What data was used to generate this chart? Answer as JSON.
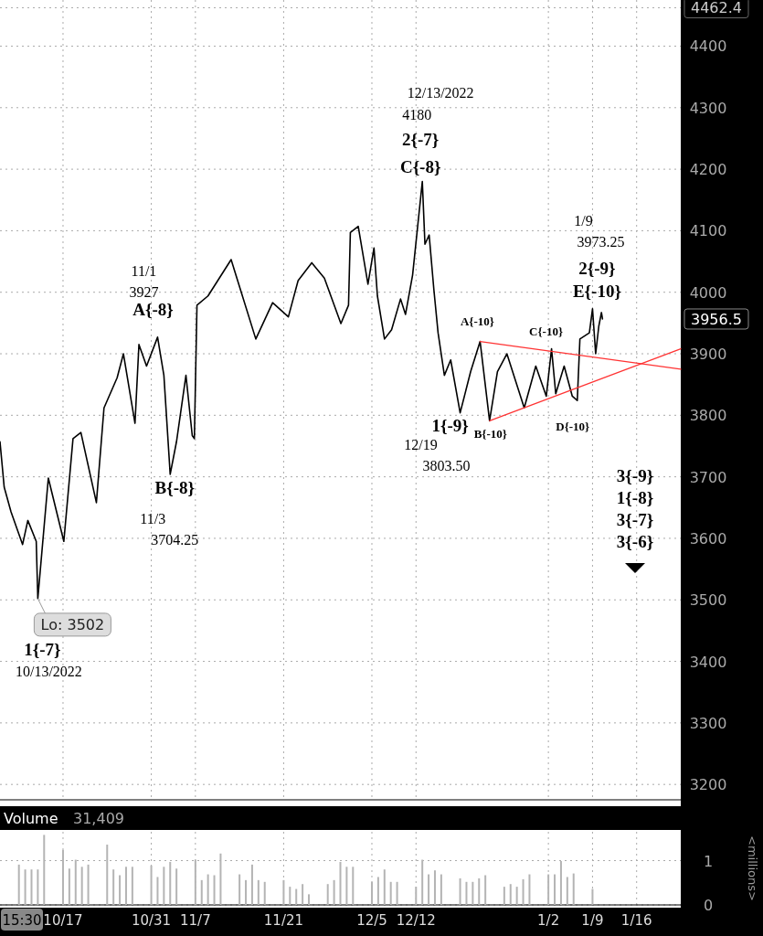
{
  "chart_data": [
    {
      "type": "line",
      "ylim": [
        3175,
        4475
      ],
      "yticks": [
        3200,
        3300,
        3400,
        3500,
        3600,
        3700,
        3800,
        3900,
        4000,
        4100,
        4200,
        4300,
        4400,
        4462.4
      ],
      "xlim": [
        "2022-10-07",
        "2023-01-23"
      ],
      "xticks": [
        {
          "value": "2022-10-17",
          "label": null
        },
        {
          "value": "2022-10-31",
          "label": null
        },
        {
          "value": "2022-11-07",
          "label": null
        },
        {
          "value": "2022-11-21",
          "label": null
        },
        {
          "value": "2022-12-05",
          "label": null
        },
        {
          "value": "2022-12-12",
          "label": null
        },
        {
          "value": "2023-01-02",
          "label": null
        },
        {
          "value": "2023-01-09",
          "label": null
        },
        {
          "value": "2023-01-16",
          "label": null
        }
      ],
      "tick_labels": "y",
      "grid": true,
      "series": [
        {
          "color": "#000000",
          "x": [
            "2022-10-07T00:00",
            "2022-10-07T16:00",
            "2022-10-08T18:00",
            "2022-10-10T14:00",
            "2022-10-11T10:00",
            "2022-10-12T18:00",
            "2022-10-13T00:00",
            "2022-10-14T16:00",
            "2022-10-17T03:00",
            "2022-10-18T14:00",
            "2022-10-19T20:00",
            "2022-10-22T07:00",
            "2022-10-23T12:00",
            "2022-10-25T14:00",
            "2022-10-26T14:00",
            "2022-10-28T10:00",
            "2022-10-29T01:00",
            "2022-10-30T06:00",
            "2022-11-01T00:00",
            "2022-11-02T00:00",
            "2022-11-03T00:00",
            "2022-11-04T00:00",
            "2022-11-05T12:00",
            "2022-11-06T12:00",
            "2022-11-06T20:00",
            "2022-11-07T06:00",
            "2022-11-09T00:00",
            "2022-11-12T16:00",
            "2022-11-16T14:00",
            "2022-11-19T06:00",
            "2022-11-21T18:00",
            "2022-11-23T07:00",
            "2022-11-25T11:00",
            "2022-11-27T11:00",
            "2022-11-30T02:00",
            "2022-12-01T07:00",
            "2022-12-01T14:00",
            "2022-12-02T20:00",
            "2022-12-04T09:00",
            "2022-12-05T08:00",
            "2022-12-05T21:00",
            "2022-12-07T00:00",
            "2022-12-08T03:00",
            "2022-12-09T13:00",
            "2022-12-10T08:00",
            "2022-12-11T11:00",
            "2022-12-13T00:00",
            "2022-12-13T10:00",
            "2022-12-14T02:00",
            "2022-12-14T20:00",
            "2022-12-15T12:00",
            "2022-12-16T12:00",
            "2022-12-17T12:00",
            "2022-12-19T00:00",
            "2022-12-20T16:00",
            "2022-12-22T04:00",
            "2022-12-23T16:00",
            "2022-12-24T22:00",
            "2022-12-26T10:00",
            "2022-12-29T04:00",
            "2022-12-31T00:00",
            "2023-01-01T16:00",
            "2023-01-02T12:00",
            "2023-01-03T04:00",
            "2023-01-04T12:00",
            "2023-01-05T19:00",
            "2023-01-06T14:00",
            "2023-01-07T00:00",
            "2023-01-08T12:00",
            "2023-01-09T00:00",
            "2023-01-09T12:00",
            "2023-01-10T00:00",
            "2023-01-10T10:00",
            "2023-01-10T14:00"
          ],
          "values": [
            3757,
            3683,
            3643,
            3590,
            3629,
            3595,
            3502,
            3698,
            3595,
            3762,
            3772,
            3658,
            3812,
            3861,
            3900,
            3787,
            3915,
            3880,
            3927,
            3865,
            3704,
            3757,
            3865,
            3767,
            3762,
            3979,
            3994,
            4053,
            3924,
            3983,
            3960,
            4019,
            4048,
            4023,
            3949,
            3979,
            4097,
            4107,
            4013,
            4072,
            3994,
            3924,
            3939,
            3989,
            3964,
            4028,
            4180,
            4078,
            4093,
            4004,
            3934,
            3865,
            3890,
            3804,
            3871,
            3920,
            3791,
            3871,
            3900,
            3812,
            3880,
            3831,
            3908,
            3835,
            3880,
            3831,
            3824,
            3924,
            3934,
            3973,
            3900,
            3945,
            3967,
            3956.5
          ]
        },
        {
          "color": "#ff3333",
          "x": [
            "2022-12-22T04:00",
            "2023-01-23T00:00"
          ],
          "values": [
            3920,
            3875
          ]
        },
        {
          "color": "#ff3333",
          "x": [
            "2022-12-23T16:00",
            "2023-01-23T00:00"
          ],
          "values": [
            3791,
            3908
          ]
        }
      ],
      "annotations": [
        {
          "text": "Lo: 3502",
          "x": "2022-10-13T00:00",
          "y": 3502
        },
        {
          "text": "1{-7}",
          "x": "2022-10-13T00:00",
          "y": 3502
        },
        "10/13/2022",
        "11/1",
        "3927",
        {
          "text": "A{-8}",
          "x": "2022-11-01T00:00",
          "y": 3927
        },
        {
          "text": "B{-8}",
          "x": "2022-11-03T00:00",
          "y": 3704.25
        },
        "11/3",
        "3704.25",
        "12/13/2022",
        "4180",
        {
          "text": "2{-7}",
          "x": "2022-12-13T00:00",
          "y": 4180
        },
        {
          "text": "C{-8}",
          "x": "2022-12-13T00:00",
          "y": 4180
        },
        {
          "text": "A{-10}",
          "x": "2022-12-22T04:00",
          "y": 3920
        },
        {
          "text": "C{-10}",
          "x": "2023-01-02T12:00",
          "y": 3908
        },
        {
          "text": "1{-9}",
          "x": "2022-12-19T00:00",
          "y": 3803.5
        },
        {
          "text": "B{-10}",
          "x": "2022-12-23T16:00",
          "y": 3791
        },
        "12/19",
        "3803.50",
        {
          "text": "D{-10}",
          "x": "2023-01-06T14:00",
          "y": 3824
        },
        "1/9",
        "3973.25",
        {
          "text": "2{-9}",
          "x": "2023-01-09T00:00",
          "y": 3973.25
        },
        {
          "text": "E{-10}",
          "x": "2023-01-09T00:00",
          "y": 3973.25
        },
        "3956.5",
        "3{-9}",
        "1{-8}",
        "3{-7}",
        "3{-6}"
      ]
    },
    {
      "type": "bar",
      "title": "Volume",
      "subtitle": "31,409",
      "ylabel": "<millions>",
      "ylim": [
        0,
        1.65
      ],
      "yticks": [
        0,
        1
      ],
      "xlim": [
        "2022-10-07",
        "2023-01-23"
      ],
      "xticks": [
        {
          "value": "2022-10-17",
          "label": "10/17"
        },
        {
          "value": "2022-10-31",
          "label": "10/31"
        },
        {
          "value": "2022-11-07",
          "label": "11/7"
        },
        {
          "value": "2022-11-21",
          "label": "11/21"
        },
        {
          "value": "2022-12-05",
          "label": "12/5"
        },
        {
          "value": "2022-12-12",
          "label": "12/12"
        },
        {
          "value": "2023-01-02",
          "label": "1/2"
        },
        {
          "value": "2023-01-09",
          "label": "1/9"
        },
        {
          "value": "2023-01-16",
          "label": "1/16"
        }
      ],
      "grid": true,
      "annotations": [
        "15:30"
      ],
      "series": [
        {
          "color": "#b4b4b4",
          "x": [
            "2022-10-10",
            "2022-10-11",
            "2022-10-12",
            "2022-10-13",
            "2022-10-14",
            "2022-10-17",
            "2022-10-18",
            "2022-10-19",
            "2022-10-20",
            "2022-10-21",
            "2022-10-24",
            "2022-10-25",
            "2022-10-26",
            "2022-10-27",
            "2022-10-28",
            "2022-10-31",
            "2022-11-01",
            "2022-11-02",
            "2022-11-03",
            "2022-11-04",
            "2022-11-07",
            "2022-11-08",
            "2022-11-09",
            "2022-11-10",
            "2022-11-11",
            "2022-11-14",
            "2022-11-15",
            "2022-11-16",
            "2022-11-17",
            "2022-11-18",
            "2022-11-21",
            "2022-11-22",
            "2022-11-23",
            "2022-11-24",
            "2022-11-25",
            "2022-11-28",
            "2022-11-29",
            "2022-11-30",
            "2022-12-01",
            "2022-12-02",
            "2022-12-05",
            "2022-12-06",
            "2022-12-07",
            "2022-12-08",
            "2022-12-09",
            "2022-12-12",
            "2022-12-13",
            "2022-12-14",
            "2022-12-15",
            "2022-12-16",
            "2022-12-19",
            "2022-12-20",
            "2022-12-21",
            "2022-12-22",
            "2022-12-23",
            "2022-12-26",
            "2022-12-27",
            "2022-12-28",
            "2022-12-29",
            "2022-12-30",
            "2023-01-02",
            "2023-01-03",
            "2023-01-04",
            "2023-01-05",
            "2023-01-06",
            "2023-01-09"
          ],
          "values": [
            0.91,
            0.8,
            0.8,
            0.8,
            1.58,
            1.24,
            0.82,
            1.02,
            0.86,
            0.91,
            1.36,
            0.8,
            0.67,
            0.86,
            0.86,
            0.89,
            0.63,
            0.86,
            0.97,
            0.82,
            1.02,
            0.56,
            0.69,
            0.67,
            1.16,
            0.69,
            0.56,
            0.91,
            0.56,
            0.52,
            0.56,
            0.41,
            0.36,
            0.47,
            0.24,
            0.47,
            0.56,
            0.97,
            0.86,
            0.86,
            0.52,
            0.63,
            0.8,
            0.52,
            0.52,
            0.41,
            1.02,
            0.69,
            0.78,
            0.69,
            0.6,
            0.52,
            0.52,
            0.6,
            0.67,
            0.41,
            0.47,
            0.41,
            0.58,
            0.69,
            0.69,
            0.69,
            0.99,
            0.63,
            0.71,
            0.36
          ]
        }
      ]
    }
  ]
}
